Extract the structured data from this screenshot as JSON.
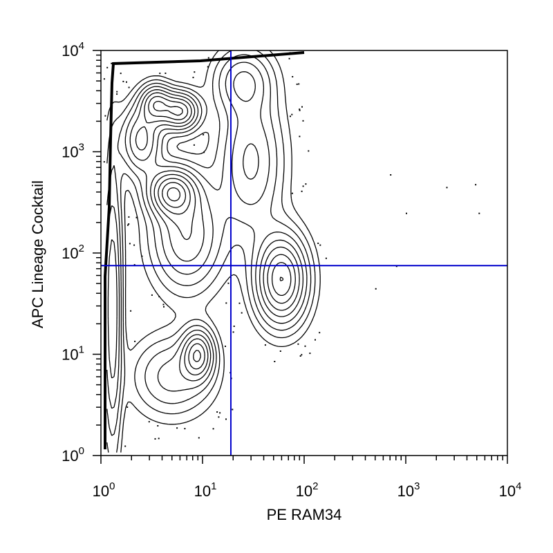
{
  "chart_data": {
    "type": "contour",
    "xlabel": "PE RAM34",
    "ylabel": "APC Lineage Cocktail",
    "x_scale": "log",
    "y_scale": "log",
    "xlim": [
      1,
      10000
    ],
    "ylim": [
      1,
      10000
    ],
    "x_ticks": [
      {
        "value": 1,
        "base": "10",
        "exp": "0"
      },
      {
        "value": 10,
        "base": "10",
        "exp": "1"
      },
      {
        "value": 100,
        "base": "10",
        "exp": "2"
      },
      {
        "value": 1000,
        "base": "10",
        "exp": "3"
      },
      {
        "value": 10000,
        "base": "10",
        "exp": "4"
      }
    ],
    "y_ticks": [
      {
        "value": 1,
        "base": "10",
        "exp": "0"
      },
      {
        "value": 10,
        "base": "10",
        "exp": "1"
      },
      {
        "value": 100,
        "base": "10",
        "exp": "2"
      },
      {
        "value": 1000,
        "base": "10",
        "exp": "3"
      },
      {
        "value": 10000,
        "base": "10",
        "exp": "4"
      }
    ],
    "gates": {
      "x": 19,
      "y": 75,
      "color": "#0000cc"
    },
    "clusters": [
      {
        "x": 60,
        "y": 55
      },
      {
        "x": 9,
        "y": 10
      },
      {
        "x": 5,
        "y": 400
      },
      {
        "x": 6,
        "y": 2500
      },
      {
        "x": 3.5,
        "y": 3000
      }
    ],
    "grid": false,
    "legend": "none"
  }
}
